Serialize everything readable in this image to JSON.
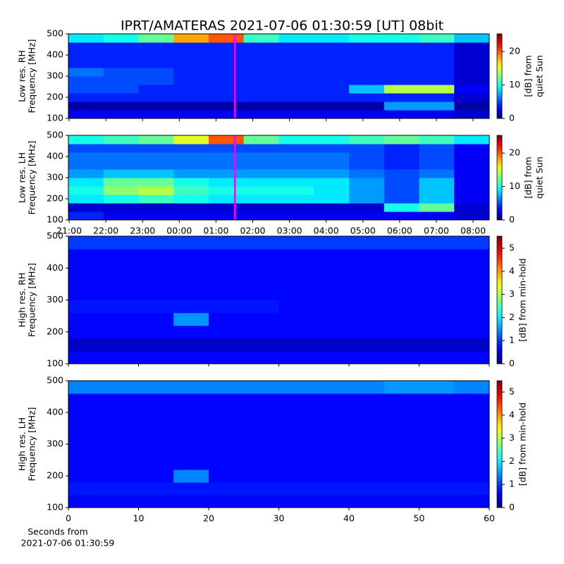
{
  "title": "IPRT/AMATERAS 2021-07-06 01:30:59 [UT]   08bit",
  "chart_data": [
    {
      "type": "heatmap",
      "colormap": "jet",
      "ylabel": [
        "Low res. RH",
        "Frequency [MHz]"
      ],
      "xlim": [
        20.98,
        32.44
      ],
      "ylim": [
        100,
        500
      ],
      "yticks": [
        100,
        200,
        300,
        400,
        500
      ],
      "xticks": [
        21,
        22,
        23,
        24,
        25,
        26,
        27,
        28,
        29,
        30,
        31,
        32
      ],
      "show_xticklabels": false,
      "clim": [
        0,
        25.3
      ],
      "cticks": [
        0,
        10,
        20
      ],
      "clabel": [
        "[dB] from",
        "quiet Sun"
      ],
      "marker": {
        "x": 25.516,
        "color": "#ff00ff"
      },
      "values": [
        [
          3,
          3,
          3,
          3,
          3,
          3,
          3,
          3,
          3,
          3,
          3,
          2
        ],
        [
          1,
          1,
          1,
          1,
          1,
          1,
          1,
          1,
          1,
          7,
          7,
          1
        ],
        [
          4,
          4,
          4,
          4,
          4,
          4,
          4,
          4,
          4,
          4,
          4,
          2
        ],
        [
          5,
          5,
          4,
          4,
          4,
          4,
          4,
          4,
          8,
          14,
          14,
          3
        ],
        [
          5,
          5,
          5,
          4,
          4,
          4,
          4,
          4,
          4,
          4,
          4,
          2
        ],
        [
          6,
          5,
          5,
          4,
          4,
          4,
          4,
          4,
          4,
          4,
          4,
          2
        ],
        [
          4,
          4,
          4,
          4,
          4,
          4,
          4,
          4,
          4,
          4,
          4,
          2
        ],
        [
          4,
          4,
          4,
          4,
          4,
          4,
          4,
          4,
          4,
          4,
          4,
          2
        ],
        [
          4,
          4,
          4,
          4,
          4,
          4,
          4,
          4,
          4,
          4,
          4,
          2
        ],
        [
          9,
          10,
          12,
          18,
          20,
          11,
          9,
          9,
          10,
          10,
          11,
          8
        ]
      ]
    },
    {
      "type": "heatmap",
      "colormap": "jet",
      "ylabel": [
        "Low res. LH",
        "Frequency [MHz]"
      ],
      "xlim": [
        20.98,
        32.44
      ],
      "ylim": [
        100,
        500
      ],
      "yticks": [
        100,
        200,
        300,
        400,
        500
      ],
      "xticks": [
        {
          "value": 21,
          "label": "21:00"
        },
        {
          "value": 22,
          "label": "22:00"
        },
        {
          "value": 23,
          "label": "23:00"
        },
        {
          "value": 24,
          "label": "00:00"
        },
        {
          "value": 25,
          "label": "01:00"
        },
        {
          "value": 26,
          "label": "02:00"
        },
        {
          "value": 27,
          "label": "03:00"
        },
        {
          "value": 28,
          "label": "04:00"
        },
        {
          "value": 29,
          "label": "05:00"
        },
        {
          "value": 30,
          "label": "06:00"
        },
        {
          "value": 31,
          "label": "07:00"
        },
        {
          "value": 32,
          "label": "08:00"
        }
      ],
      "show_xticklabels": true,
      "clim": [
        0,
        25.3
      ],
      "cticks": [
        0,
        10,
        20
      ],
      "clabel": [
        "[dB] from",
        "quiet Sun"
      ],
      "marker": {
        "x": 25.516,
        "color": "#ff00ff"
      },
      "values": [
        [
          4,
          3,
          3,
          3,
          3,
          3,
          3,
          3,
          3,
          3,
          3,
          2
        ],
        [
          2,
          2,
          2,
          2,
          2,
          2,
          2,
          2,
          2,
          10,
          12,
          2
        ],
        [
          9,
          10,
          11,
          10,
          9,
          9,
          9,
          9,
          7,
          5,
          8,
          3
        ],
        [
          10,
          13,
          14,
          11,
          10,
          10,
          10,
          9,
          7,
          5,
          8,
          3
        ],
        [
          9,
          12,
          12,
          10,
          9,
          9,
          9,
          9,
          7,
          5,
          8,
          3
        ],
        [
          7,
          8,
          8,
          7,
          7,
          7,
          7,
          7,
          6,
          5,
          6,
          3
        ],
        [
          6,
          6,
          6,
          6,
          6,
          6,
          6,
          6,
          5,
          4,
          5,
          3
        ],
        [
          6,
          6,
          6,
          6,
          6,
          6,
          6,
          6,
          5,
          4,
          5,
          3
        ],
        [
          5,
          5,
          5,
          5,
          5,
          5,
          5,
          5,
          5,
          4,
          5,
          3
        ],
        [
          10,
          11,
          12,
          15,
          20,
          12,
          10,
          10,
          11,
          12,
          11,
          9
        ]
      ]
    },
    {
      "type": "heatmap",
      "colormap": "jet",
      "ylabel": [
        "High res. RH",
        "Frequency [MHz]"
      ],
      "xlim": [
        0,
        60
      ],
      "ylim": [
        100,
        500
      ],
      "yticks": [
        100,
        200,
        300,
        400,
        500
      ],
      "xticks": [
        0,
        10,
        20,
        30,
        40,
        50,
        60
      ],
      "show_xticklabels": false,
      "clim": [
        0,
        5.52
      ],
      "cticks": [
        0,
        1,
        2,
        3,
        4,
        5
      ],
      "clabel": [
        "[dB] from min-hold"
      ],
      "values": [
        [
          0.7,
          0.7,
          0.7,
          0.7,
          0.7,
          0.7,
          0.7,
          0.7,
          0.7,
          0.7,
          0.7,
          0.7
        ],
        [
          0.4,
          0.4,
          0.4,
          0.4,
          0.4,
          0.4,
          0.4,
          0.4,
          0.4,
          0.4,
          0.4,
          0.4
        ],
        [
          0.7,
          0.7,
          0.7,
          0.7,
          0.7,
          0.7,
          0.7,
          0.7,
          0.7,
          0.7,
          0.7,
          0.7
        ],
        [
          0.7,
          0.7,
          0.7,
          1.5,
          0.7,
          0.7,
          0.7,
          0.7,
          0.7,
          0.7,
          0.7,
          0.7
        ],
        [
          0.8,
          0.8,
          0.8,
          0.8,
          0.8,
          0.8,
          0.7,
          0.7,
          0.7,
          0.7,
          0.7,
          0.7
        ],
        [
          0.7,
          0.7,
          0.7,
          0.7,
          0.7,
          0.7,
          0.7,
          0.7,
          0.7,
          0.7,
          0.7,
          0.7
        ],
        [
          0.7,
          0.7,
          0.7,
          0.7,
          0.7,
          0.7,
          0.7,
          0.7,
          0.7,
          0.7,
          0.7,
          0.7
        ],
        [
          0.7,
          0.7,
          0.7,
          0.7,
          0.7,
          0.7,
          0.7,
          0.7,
          0.7,
          0.7,
          0.7,
          0.7
        ],
        [
          0.7,
          0.7,
          0.7,
          0.7,
          0.7,
          0.7,
          0.7,
          0.7,
          0.7,
          0.7,
          0.7,
          0.7
        ],
        [
          1.0,
          1.0,
          1.0,
          1.0,
          1.0,
          1.0,
          1.0,
          1.0,
          1.0,
          1.0,
          1.0,
          1.0
        ]
      ]
    },
    {
      "type": "heatmap",
      "colormap": "jet",
      "ylabel": [
        "High res. LH",
        "Frequency [MHz]"
      ],
      "xlim": [
        0,
        60
      ],
      "ylim": [
        100,
        500
      ],
      "yticks": [
        100,
        200,
        300,
        400,
        500
      ],
      "xticks": [
        0,
        10,
        20,
        30,
        40,
        50,
        60
      ],
      "show_xticklabels": true,
      "xlabel": [
        "Seconds from",
        "2021-07-06 01:30:59"
      ],
      "clim": [
        0,
        5.49
      ],
      "cticks": [
        0,
        1,
        2,
        3,
        4,
        5
      ],
      "clabel": [
        "[dB] from min-hold"
      ],
      "values": [
        [
          0.7,
          0.7,
          0.7,
          0.7,
          0.7,
          0.7,
          0.7,
          0.7,
          0.7,
          0.7,
          0.7,
          0.7
        ],
        [
          0.8,
          0.8,
          0.8,
          0.8,
          0.8,
          0.8,
          0.8,
          0.8,
          0.8,
          0.8,
          0.8,
          0.8
        ],
        [
          0.7,
          0.7,
          0.7,
          1.4,
          0.7,
          0.7,
          0.7,
          0.7,
          0.7,
          0.7,
          0.7,
          0.7
        ],
        [
          0.7,
          0.7,
          0.7,
          0.7,
          0.7,
          0.7,
          0.7,
          0.7,
          0.7,
          0.7,
          0.7,
          0.7
        ],
        [
          0.7,
          0.7,
          0.7,
          0.7,
          0.7,
          0.7,
          0.7,
          0.7,
          0.7,
          0.7,
          0.7,
          0.7
        ],
        [
          0.7,
          0.7,
          0.7,
          0.7,
          0.7,
          0.7,
          0.7,
          0.7,
          0.7,
          0.7,
          0.7,
          0.7
        ],
        [
          0.7,
          0.7,
          0.7,
          0.7,
          0.7,
          0.7,
          0.7,
          0.7,
          0.7,
          0.7,
          0.7,
          0.7
        ],
        [
          0.7,
          0.7,
          0.7,
          0.7,
          0.7,
          0.7,
          0.7,
          0.7,
          0.7,
          0.7,
          0.7,
          0.7
        ],
        [
          0.7,
          0.7,
          0.7,
          0.7,
          0.7,
          0.7,
          0.7,
          0.7,
          0.7,
          0.7,
          0.7,
          0.7
        ],
        [
          1.4,
          1.4,
          1.4,
          1.4,
          1.4,
          1.4,
          1.4,
          1.4,
          1.4,
          1.5,
          1.5,
          1.4
        ]
      ]
    }
  ]
}
